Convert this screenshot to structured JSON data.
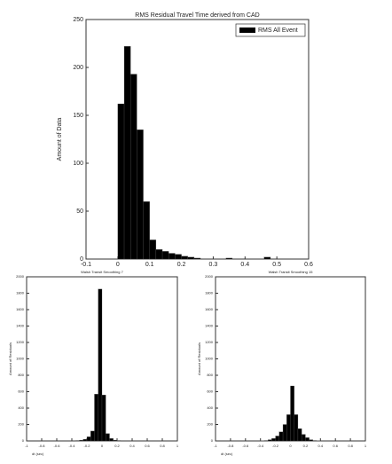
{
  "chart_data": [
    {
      "type": "histogram",
      "title": "RMS Residual Travel Time derived from CAD",
      "ylabel": "Amount of Data",
      "legend": "upper right",
      "series": [
        {
          "name": "RMS All Event",
          "color": "#000000",
          "bins": [
            0,
            0.02,
            0.04,
            0.06,
            0.08,
            0.1,
            0.12,
            0.14,
            0.16,
            0.18,
            0.2,
            0.22,
            0.24,
            0.26,
            0.28,
            0.3,
            0.32,
            0.34,
            0.36,
            0.38,
            0.4,
            0.42,
            0.44,
            0.46,
            0.48,
            0.5
          ],
          "values": [
            162,
            222,
            193,
            135,
            60,
            20,
            10,
            8,
            6,
            5,
            3,
            2,
            1,
            0,
            0,
            0,
            0,
            1,
            0,
            0,
            0,
            0,
            0,
            2,
            0
          ]
        }
      ],
      "xlim": [
        -0.1,
        0.6
      ],
      "ylim": [
        0,
        250
      ],
      "xticks": [
        -0.1,
        0,
        0.1,
        0.2,
        0.3,
        0.4,
        0.5,
        0.6
      ],
      "yticks": [
        0,
        50,
        100,
        150,
        200,
        250
      ]
    },
    {
      "type": "histogram",
      "title": "Walsh Transit Smoothing 7",
      "ylabel": "Amount of Residuals",
      "xlabel": "dt (sec)",
      "series": [
        {
          "color": "#000000",
          "bins": [
            -0.5,
            -0.45,
            -0.4,
            -0.35,
            -0.3,
            -0.25,
            -0.2,
            -0.15,
            -0.1,
            -0.05,
            0,
            0.05,
            0.1,
            0.15,
            0.2,
            0.25,
            0.3,
            0.35,
            0.4,
            0.45,
            0.5
          ],
          "values": [
            0,
            0,
            0,
            5,
            10,
            20,
            50,
            120,
            570,
            1850,
            560,
            90,
            30,
            10,
            5,
            0,
            0,
            0,
            0,
            0
          ]
        }
      ],
      "xlim": [
        -1,
        1
      ],
      "ylim": [
        0,
        2000
      ],
      "xticks": [
        -1,
        -0.8,
        -0.6,
        -0.4,
        -0.2,
        0,
        0.2,
        0.4,
        0.6,
        0.8,
        1
      ],
      "yticks": [
        0,
        200,
        400,
        600,
        800,
        1000,
        1200,
        1400,
        1600,
        1800,
        2000
      ]
    },
    {
      "type": "histogram",
      "title": "Walsh Transit Smoothing 15",
      "ylabel": "Amount of Residuals",
      "xlabel": "dt (sec)",
      "series": [
        {
          "color": "#000000",
          "bins": [
            -0.5,
            -0.45,
            -0.4,
            -0.35,
            -0.3,
            -0.25,
            -0.2,
            -0.15,
            -0.1,
            -0.05,
            0,
            0.05,
            0.1,
            0.15,
            0.2,
            0.25,
            0.3,
            0.35,
            0.4,
            0.45,
            0.5
          ],
          "values": [
            0,
            0,
            2,
            5,
            15,
            30,
            60,
            110,
            200,
            320,
            670,
            320,
            150,
            80,
            40,
            15,
            5,
            2,
            0,
            0
          ]
        }
      ],
      "xlim": [
        -1,
        1
      ],
      "ylim": [
        0,
        2000
      ],
      "xticks": [
        -1,
        -0.8,
        -0.6,
        -0.4,
        -0.2,
        0,
        0.2,
        0.4,
        0.6,
        0.8,
        1
      ],
      "yticks": [
        0,
        200,
        400,
        600,
        800,
        1000,
        1200,
        1400,
        1600,
        1800,
        2000
      ]
    }
  ]
}
